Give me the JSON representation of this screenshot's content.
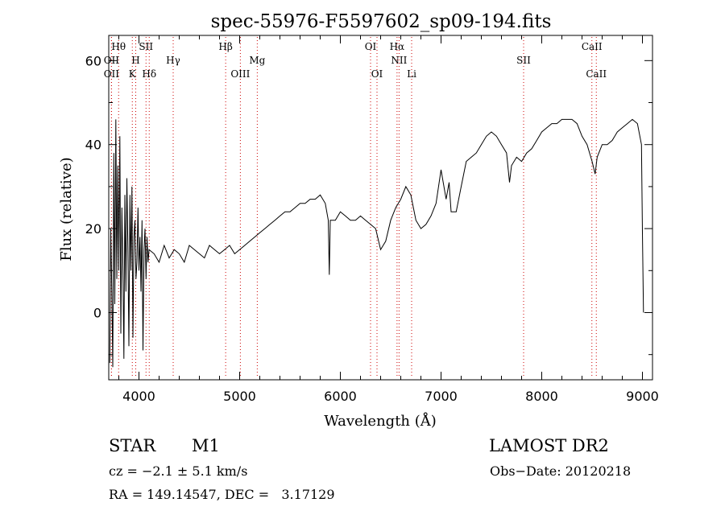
{
  "chart_data": {
    "type": "line",
    "title": "spec-55976-F5597602_sp09-194.fits",
    "xlabel": "Wavelength (Å)",
    "ylabel": "Flux (relative)",
    "xlim": [
      3700,
      9100
    ],
    "ylim": [
      -16,
      66
    ],
    "xticks": [
      4000,
      5000,
      6000,
      7000,
      8000,
      9000
    ],
    "yticks": [
      0,
      20,
      40,
      60
    ],
    "grid": false,
    "series": [
      {
        "x": [
          3710,
          3720,
          3730,
          3740,
          3750,
          3760,
          3770,
          3780,
          3790,
          3800,
          3810,
          3820,
          3830,
          3840,
          3850,
          3860,
          3870,
          3880,
          3890,
          3900,
          3910,
          3920,
          3930,
          3940,
          3950,
          3960,
          3970,
          3980,
          3990,
          4000,
          4010,
          4020,
          4030,
          4040,
          4050,
          4060,
          4070,
          4080,
          4090,
          4100,
          4150,
          4200,
          4250,
          4300,
          4350,
          4400,
          4450,
          4500,
          4550,
          4600,
          4650,
          4700,
          4750,
          4800,
          4850,
          4900,
          4950,
          5000,
          5050,
          5100,
          5150,
          5200,
          5250,
          5300,
          5350,
          5400,
          5450,
          5500,
          5550,
          5600,
          5650,
          5700,
          5750,
          5800,
          5850,
          5880,
          5890,
          5900,
          5950,
          6000,
          6050,
          6100,
          6150,
          6200,
          6250,
          6300,
          6350,
          6400,
          6450,
          6500,
          6550,
          6600,
          6650,
          6700,
          6750,
          6800,
          6850,
          6900,
          6950,
          7000,
          7050,
          7080,
          7100,
          7150,
          7200,
          7250,
          7300,
          7350,
          7400,
          7450,
          7500,
          7550,
          7600,
          7650,
          7680,
          7700,
          7750,
          7800,
          7850,
          7900,
          7950,
          8000,
          8050,
          8100,
          8150,
          8200,
          8250,
          8300,
          8350,
          8400,
          8450,
          8500,
          8530,
          8550,
          8600,
          8650,
          8700,
          8750,
          8800,
          8850,
          8900,
          8950,
          8990,
          9000,
          9010
        ],
        "y": [
          -12,
          20,
          5,
          -13,
          38,
          2,
          46,
          8,
          35,
          10,
          42,
          -5,
          25,
          12,
          -11,
          28,
          5,
          32,
          15,
          -8,
          28,
          10,
          30,
          -6,
          18,
          22,
          8,
          12,
          25,
          10,
          18,
          5,
          22,
          -9,
          15,
          20,
          8,
          18,
          12,
          15,
          14,
          12,
          16,
          13,
          15,
          14,
          12,
          16,
          15,
          14,
          13,
          16,
          15,
          14,
          15,
          16,
          14,
          15,
          16,
          17,
          18,
          19,
          20,
          21,
          22,
          23,
          24,
          24,
          25,
          26,
          26,
          27,
          27,
          28,
          26,
          22,
          9,
          22,
          22,
          24,
          23,
          22,
          22,
          23,
          22,
          21,
          20,
          15,
          17,
          22,
          25,
          27,
          30,
          28,
          22,
          20,
          21,
          23,
          26,
          34,
          27,
          31,
          24,
          24,
          30,
          36,
          37,
          38,
          40,
          42,
          43,
          42,
          40,
          38,
          31,
          35,
          37,
          36,
          38,
          39,
          41,
          43,
          44,
          45,
          45,
          46,
          46,
          46,
          45,
          42,
          40,
          36,
          33,
          37,
          40,
          40,
          41,
          43,
          44,
          45,
          46,
          45,
          40,
          19,
          0
        ]
      }
    ],
    "lines": [
      {
        "name": "Hθ",
        "x": 3798,
        "row": 1
      },
      {
        "name": "OII",
        "x": 3727,
        "row": 2
      },
      {
        "name": "OII",
        "x": 3727,
        "row": 3
      },
      {
        "name": "H",
        "x": 3968,
        "row": 2
      },
      {
        "name": "K",
        "x": 3934,
        "row": 3
      },
      {
        "name": "SII",
        "x": 4070,
        "row": 1
      },
      {
        "name": "Hδ",
        "x": 4102,
        "row": 3
      },
      {
        "name": "Hγ",
        "x": 4340,
        "row": 2
      },
      {
        "name": "Hβ",
        "x": 4861,
        "row": 1
      },
      {
        "name": "OIII",
        "x": 5007,
        "row": 3
      },
      {
        "name": "Mg",
        "x": 5175,
        "row": 2
      },
      {
        "name": "OI",
        "x": 6300,
        "row": 1
      },
      {
        "name": "OI",
        "x": 6364,
        "row": 3
      },
      {
        "name": "Hα",
        "x": 6563,
        "row": 1
      },
      {
        "name": "NII",
        "x": 6583,
        "row": 2
      },
      {
        "name": "Li",
        "x": 6708,
        "row": 3
      },
      {
        "name": "SII",
        "x": 7820,
        "row": 2
      },
      {
        "name": "CaII",
        "x": 8498,
        "row": 1
      },
      {
        "name": "CaII",
        "x": 8542,
        "row": 3
      }
    ]
  },
  "info": {
    "object_class": "STAR",
    "subclass": "M1",
    "survey": "LAMOST DR2",
    "redshift": "cz = −2.1 ± 5.1 km/s",
    "obs_date": "Obs−Date: 20120218",
    "coords": "RA = 149.14547, DEC =   3.17129"
  }
}
